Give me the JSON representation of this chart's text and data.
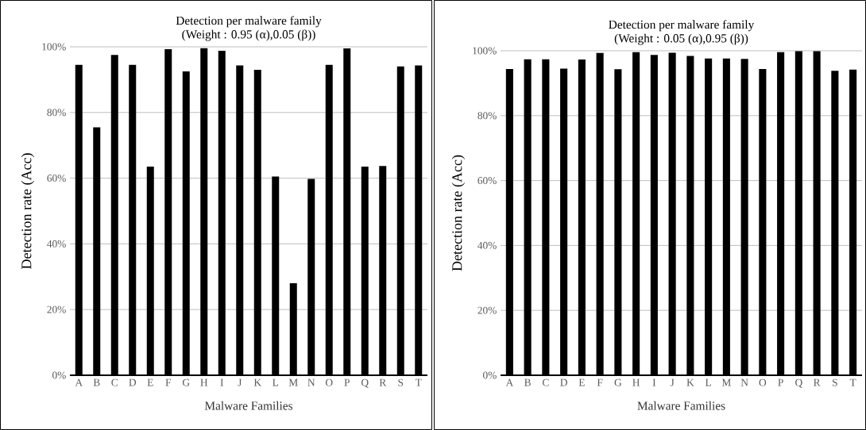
{
  "chart_data": [
    {
      "type": "bar",
      "title": "Detection per malware family",
      "subtitle": "(Weight :  0.95 (α),0.05 (β))",
      "xlabel": "Malware Families",
      "ylabel": "Detection rate  (Acc)",
      "categories": [
        "A",
        "B",
        "C",
        "D",
        "E",
        "F",
        "G",
        "H",
        "I",
        "J",
        "K",
        "L",
        "M",
        "N",
        "O",
        "P",
        "Q",
        "R",
        "S",
        "T"
      ],
      "values": [
        94.5,
        75.5,
        97.5,
        94.5,
        63.5,
        99.3,
        92.5,
        99.6,
        98.8,
        94.3,
        93,
        60.5,
        28,
        59.8,
        94.5,
        99.5,
        63.5,
        63.7,
        94,
        94.3
      ],
      "color": "#000000",
      "ylim": [
        0,
        100
      ],
      "yticks": [
        {
          "value": 0,
          "label": "0%"
        },
        {
          "value": 20,
          "label": "20%"
        },
        {
          "value": 40,
          "label": "40%"
        },
        {
          "value": 60,
          "label": "60%"
        },
        {
          "value": 80,
          "label": "80%"
        },
        {
          "value": 100,
          "label": "100%"
        }
      ],
      "grid": "y"
    },
    {
      "type": "bar",
      "title": "Detection per malware family",
      "subtitle": "(Weight : 0.05 (α),0.95 (β))",
      "xlabel": "Malware Families",
      "ylabel": "Detection rate  (Acc)",
      "categories": [
        "A",
        "B",
        "C",
        "D",
        "E",
        "F",
        "G",
        "H",
        "I",
        "J",
        "K",
        "L",
        "M",
        "N",
        "O",
        "P",
        "Q",
        "R",
        "S",
        "T"
      ],
      "values": [
        94.4,
        97.4,
        97.4,
        94.5,
        97.3,
        99.3,
        94.3,
        99.6,
        98.7,
        99.4,
        98.4,
        97.6,
        97.6,
        97.5,
        94.4,
        99.6,
        99.9,
        99.9,
        93.8,
        94.2
      ],
      "color": "#000000",
      "ylim": [
        0,
        100
      ],
      "yticks": [
        {
          "value": 0,
          "label": "0%"
        },
        {
          "value": 20,
          "label": "20%"
        },
        {
          "value": 40,
          "label": "40%"
        },
        {
          "value": 60,
          "label": "60%"
        },
        {
          "value": 80,
          "label": "80%"
        },
        {
          "value": 100,
          "label": "100%"
        }
      ],
      "grid": "y"
    }
  ]
}
